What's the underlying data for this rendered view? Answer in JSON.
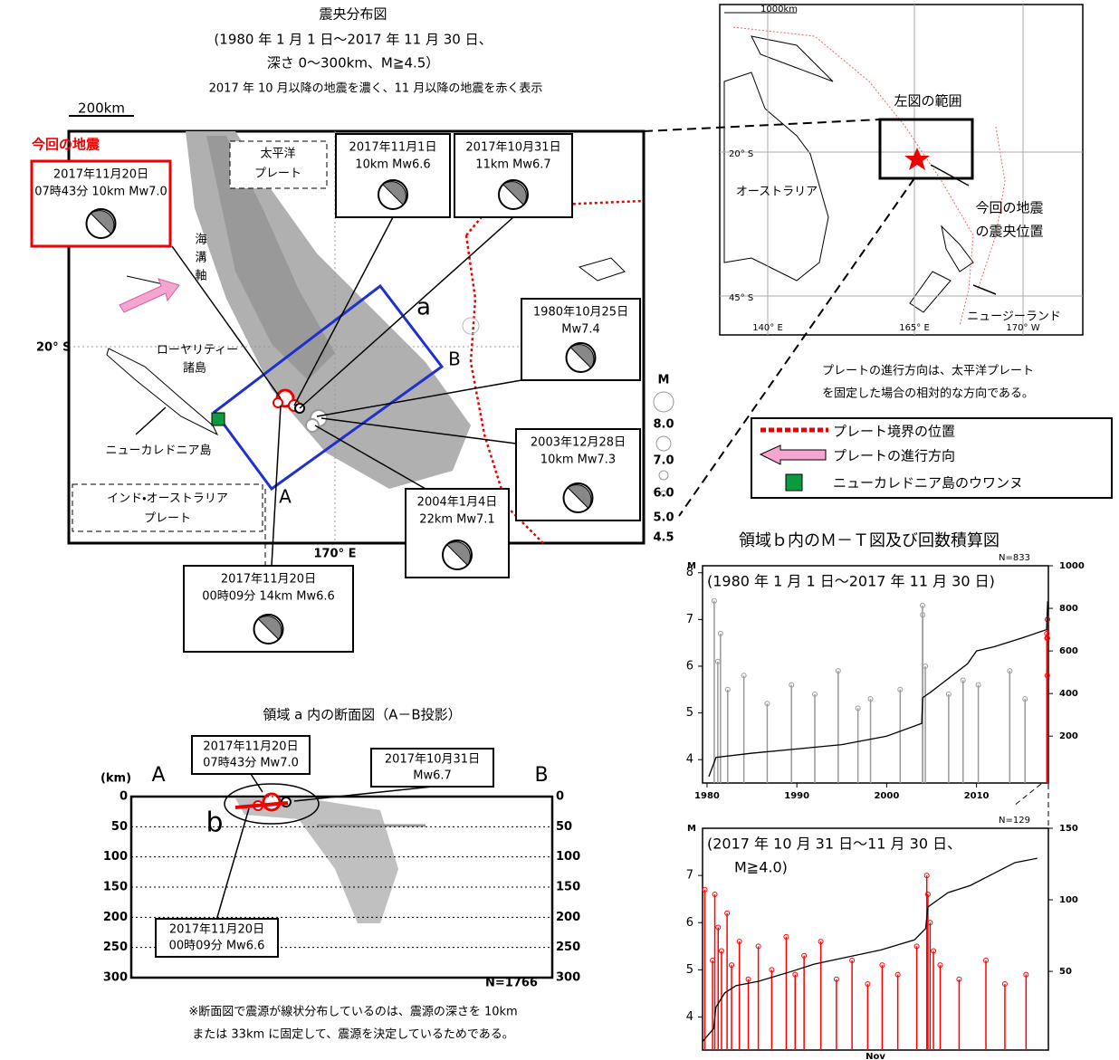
{
  "main_map": {
    "title": "震央分布図",
    "subtitle": [
      "(1980 年 1 月 1 日～2017 年 11 月 30 日、",
      "深さ 0～300km、M≧4.5）",
      "2017 年 10 月以降の地震を濃く、11 月以降の地震を赤く表示"
    ],
    "scale": "200km",
    "lat": "20° S",
    "lon": "170° E",
    "current_label": "今回の地震",
    "places": {
      "pacific": [
        "太平洋",
        "プレート"
      ],
      "trench": [
        "海",
        "溝",
        "軸"
      ],
      "loyalty": [
        "ローヤリティー",
        "諸島"
      ],
      "new_caledonia": "ニューカレドニア島",
      "indo": [
        "インド・オーストラリア",
        "プレート"
      ],
      "a": "a",
      "A": "A",
      "B": "B"
    },
    "events": [
      {
        "lines": [
          "2017年11月20日",
          "07時43分  10km Mw7.0"
        ]
      },
      {
        "lines": [
          "2017年11月1日",
          "10km Mw6.6"
        ]
      },
      {
        "lines": [
          "2017年10月31日",
          "11km Mw6.7"
        ]
      },
      {
        "lines": [
          "1980年10月25日",
          "Mw7.4"
        ]
      },
      {
        "lines": [
          "2003年12月28日",
          "10km Mw7.3"
        ]
      },
      {
        "lines": [
          "2004年1月4日",
          "22km Mw7.1"
        ]
      },
      {
        "lines": [
          "2017年11月20日",
          "00時09分  14km   Mw6.6"
        ]
      }
    ],
    "magnitude_legend": {
      "title": "M",
      "labels": [
        "8.0",
        "7.0",
        "6.0",
        "5.0",
        "4.5"
      ]
    }
  },
  "inset_map": {
    "scale": "1000km",
    "range_label": "左図の範囲",
    "australia": "オーストラリア",
    "epicenter": [
      "今回の地震",
      "の震央位置"
    ],
    "nz": "ニュージーランド",
    "lat_labels": [
      "20° S",
      "45° S"
    ],
    "lon_labels": [
      "140° E",
      "165° E",
      "170° W"
    ],
    "note": [
      "プレートの進行方向は、太平洋プレート",
      "を固定した場合の相対的な方向である。"
    ]
  },
  "legend": [
    "プレート境界の位置",
    "プレートの進行方向",
    "ニューカレドニア島のウワンヌ"
  ],
  "cross_section": {
    "title": "領域 a 内の断面図（A－B投影）",
    "unit": "(km)",
    "A": "A",
    "B": "B",
    "b": "b",
    "ylim": [
      0,
      300
    ],
    "yticks": [
      0,
      50,
      100,
      150,
      200,
      250,
      300
    ],
    "count": "N=1766",
    "events": [
      {
        "lines": [
          "2017年11月20日",
          "07時43分 Mw7.0"
        ]
      },
      {
        "lines": [
          "2017年10月31日",
          "Mw6.7"
        ]
      },
      {
        "lines": [
          "2017年11月20日",
          "00時09分 Mw6.6"
        ]
      }
    ],
    "note": [
      "※断面図で震源が線状分布しているのは、震源の深さを 10km",
      "または 33km に固定して、震源を決定しているためである。"
    ]
  },
  "mt_title": "領域ｂ内のＭ－Ｔ図及び回数積算図",
  "chart_data": [
    {
      "type": "mt",
      "subtitle": "(1980 年 1 月 1 日～2017 年 11 月 30 日)",
      "count_label": "N=833",
      "y_label": "M",
      "xlim": [
        1979.5,
        2018
      ],
      "xticks": [
        1980,
        1990,
        2000,
        2010
      ],
      "ylim": [
        3.5,
        8.15
      ],
      "yticks": [
        4,
        5,
        6,
        7,
        8
      ],
      "y2lim": [
        -20,
        1000
      ],
      "y2ticks": [
        200,
        400,
        600,
        800,
        1000
      ],
      "series": [
        {
          "type": "stem",
          "color": "#999999",
          "x": [
            1980.8,
            1981.2,
            1981.5,
            1982.3,
            1984.1,
            1986.7,
            1989.4,
            1992.0,
            1994.6,
            1996.8,
            1998.2,
            2001.5,
            2003.99,
            2004.01,
            2004.3,
            2006.9,
            2008.5,
            2010.2,
            2013.7,
            2015.4
          ],
          "values": [
            7.4,
            6.1,
            6.7,
            5.5,
            5.8,
            5.2,
            5.6,
            5.4,
            5.9,
            5.1,
            5.3,
            5.5,
            7.3,
            7.1,
            6.0,
            5.4,
            5.7,
            5.6,
            5.9,
            5.3
          ]
        },
        {
          "type": "stem",
          "color": "#ff0000",
          "x": [
            2017.83,
            2017.84,
            2017.88,
            2017.89,
            2017.9
          ],
          "values": [
            6.7,
            6.6,
            5.8,
            6.6,
            7.0
          ]
        },
        {
          "type": "line",
          "color": "#000000",
          "axis": "y2",
          "x": [
            1980.2,
            1981,
            1985,
            1990,
            1995,
            2000,
            2003.9,
            2004,
            2005,
            2009,
            2010,
            2012,
            2015,
            2017.8,
            2017.92
          ],
          "values": [
            10,
            100,
            120,
            140,
            160,
            200,
            260,
            380,
            410,
            540,
            600,
            620,
            660,
            700,
            833
          ]
        }
      ]
    },
    {
      "type": "mt",
      "subtitle": "(2017 年 10 月 31 日～11 月 30 日、",
      "subtitle2": "M≧4.0)",
      "count_label": "N=129",
      "y_label": "M",
      "x_month_label": "Nov",
      "xlim": [
        0,
        31
      ],
      "ylim": [
        3.3,
        8.0
      ],
      "yticks": [
        4,
        5,
        6,
        7
      ],
      "y2lim": [
        -5,
        150
      ],
      "y2ticks": [
        50,
        100,
        150
      ],
      "series": [
        {
          "type": "stem",
          "color": "#ff0000",
          "x": [
            0.2,
            0.9,
            1.1,
            1.4,
            1.7,
            2.2,
            2.6,
            3.3,
            4.1,
            5.0,
            6.2,
            7.5,
            8.3,
            9.1,
            10.6,
            12.0,
            13.4,
            14.8,
            16.1,
            17.5,
            19.2,
            20.1,
            20.2,
            20.4,
            20.7,
            21.3,
            23.0,
            25.4,
            27.1,
            29.0
          ],
          "values": [
            6.7,
            5.2,
            6.6,
            5.9,
            5.4,
            6.2,
            5.1,
            5.6,
            4.8,
            5.5,
            5.0,
            5.7,
            4.9,
            5.3,
            5.6,
            4.8,
            5.2,
            4.7,
            5.1,
            4.9,
            5.5,
            7.0,
            6.6,
            6.0,
            5.4,
            5.1,
            4.8,
            5.2,
            4.7,
            4.9
          ]
        },
        {
          "type": "line",
          "color": "#000000",
          "axis": "y2",
          "x": [
            0,
            1,
            1.2,
            2,
            3,
            5,
            8,
            10,
            13,
            16,
            19,
            20,
            20.2,
            22,
            24,
            26,
            28,
            30
          ],
          "values": [
            1,
            10,
            25,
            35,
            40,
            43,
            50,
            55,
            60,
            65,
            72,
            80,
            95,
            105,
            110,
            118,
            126,
            129
          ]
        }
      ]
    }
  ]
}
